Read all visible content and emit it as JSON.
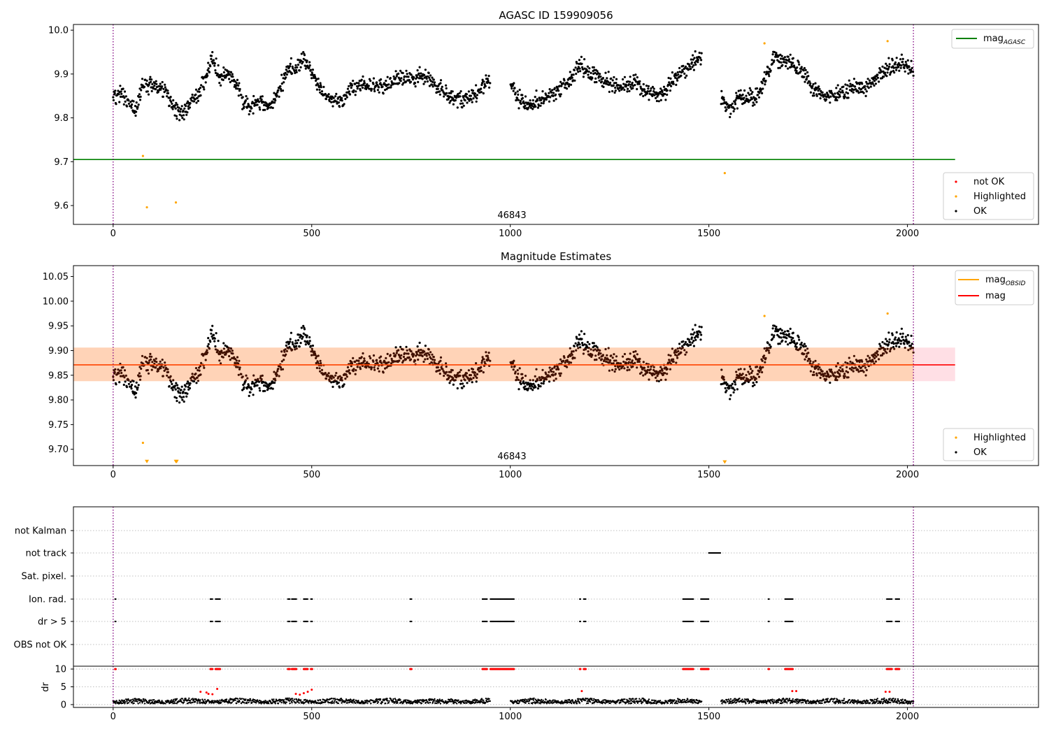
{
  "chart_data": [
    {
      "type": "scatter",
      "title": "AGASC ID 159909056",
      "xlim": [
        -100,
        2330
      ],
      "ylim": [
        9.557,
        10.013
      ],
      "xticks": [
        0,
        500,
        1000,
        1500,
        2000
      ],
      "xtick_labels": [
        "0",
        "500",
        "1000",
        "1500",
        "2000"
      ],
      "yticks": [
        9.6,
        9.7,
        9.8,
        9.9,
        10.0
      ],
      "ytick_labels": [
        "9.6",
        "9.7",
        "9.8",
        "9.9",
        "10.0"
      ],
      "obsid_boundaries": [
        0,
        2015
      ],
      "obsid_label": "46843",
      "obsid_label_x": 1000,
      "reference_lines": [
        {
          "name": "mag_AGASC",
          "value": 9.705,
          "x_range": [
            -100,
            2120
          ],
          "color": "#008000"
        }
      ],
      "legend_lines": {
        "main": "mag",
        "sub": "AGASC",
        "color": "#008000",
        "placement": "top-right"
      },
      "legend_points": {
        "placement": "bottom-right",
        "entries": [
          {
            "label": "not OK",
            "color": "#ff0000"
          },
          {
            "label": "Highlighted",
            "color": "#ffa500"
          },
          {
            "label": "OK",
            "color": "#000000"
          }
        ]
      },
      "series": [
        {
          "name": "OK",
          "color": "#000000",
          "description": "about 1900 samples over frames 0-2015, mag oscillating between 9.79 and 9.96; gaps near 950-1000 and 1480-1530"
        },
        {
          "name": "Highlighted",
          "color": "#ffa500",
          "points": [
            [
              75,
              9.713
            ],
            [
              85,
              9.596
            ],
            [
              158,
              9.607
            ],
            [
              1540,
              9.674
            ],
            [
              1640,
              9.97
            ],
            [
              1950,
              9.975
            ]
          ]
        },
        {
          "name": "not OK",
          "color": "#ff0000",
          "points": []
        }
      ]
    },
    {
      "type": "scatter",
      "title": "Magnitude Estimates",
      "xlim": [
        -100,
        2330
      ],
      "ylim": [
        9.667,
        10.072
      ],
      "xticks": [
        0,
        500,
        1000,
        1500,
        2000
      ],
      "xtick_labels": [
        "0",
        "500",
        "1000",
        "1500",
        "2000"
      ],
      "yticks": [
        9.7,
        9.75,
        9.8,
        9.85,
        9.9,
        9.95,
        10.0,
        10.05
      ],
      "ytick_labels": [
        "9.70",
        "9.75",
        "9.80",
        "9.85",
        "9.90",
        "9.95",
        "10.00",
        "10.05"
      ],
      "obsid_boundaries": [
        0,
        2015
      ],
      "obsid_label": "46843",
      "obsid_label_x": 1000,
      "mag": 9.871,
      "mag_obsid": 9.871,
      "band_outer": [
        9.838,
        9.906
      ],
      "band_inner": [
        9.838,
        9.906
      ],
      "band_x_range": [
        -100,
        2120
      ],
      "legend_lines": {
        "placement": "top-right",
        "entries": [
          {
            "main": "mag",
            "sub": "OBSID",
            "color": "#ffa500"
          },
          {
            "main": "mag",
            "sub": "",
            "color": "#ff0000"
          }
        ]
      },
      "legend_points": {
        "placement": "bottom-right",
        "entries": [
          {
            "label": "Highlighted",
            "color": "#ffa500"
          },
          {
            "label": "OK",
            "color": "#000000"
          }
        ]
      },
      "series": [
        {
          "name": "OK",
          "color": "#000000",
          "description": "same samples as upper panel"
        },
        {
          "name": "Highlighted",
          "color": "#ffa500",
          "points": [
            [
              75,
              9.713
            ],
            [
              1640,
              9.97
            ],
            [
              1950,
              9.975
            ]
          ]
        },
        {
          "name": "Highlighted (below range)",
          "color": "#ffa500",
          "marker": "triangle-down",
          "points": [
            [
              85,
              9.673
            ],
            [
              158,
              9.673
            ],
            [
              160,
              9.673
            ],
            [
              1540,
              9.672
            ]
          ]
        }
      ]
    },
    {
      "type": "scatter",
      "title": "",
      "xlim": [
        -100,
        2330
      ],
      "xticks": [
        0,
        500,
        1000,
        1500,
        2000
      ],
      "xtick_labels": [
        "0",
        "500",
        "1000",
        "1500",
        "2000"
      ],
      "flag_labels": [
        "not Kalman",
        "not track",
        "Sat. pixel.",
        "Ion. rad.",
        "dr > 5",
        "OBS not OK"
      ],
      "flag_segments": {
        "not track": [
          [
            1500,
            1530
          ]
        ],
        "Ion. rad.": [
          [
            5,
            8
          ],
          [
            245,
            250
          ],
          [
            258,
            270
          ],
          [
            440,
            445
          ],
          [
            450,
            462
          ],
          [
            480,
            490
          ],
          [
            498,
            502
          ],
          [
            748,
            752
          ],
          [
            930,
            942
          ],
          [
            950,
            1010
          ],
          [
            1175,
            1178
          ],
          [
            1185,
            1190
          ],
          [
            1435,
            1462
          ],
          [
            1480,
            1500
          ],
          [
            1650,
            1652
          ],
          [
            1692,
            1712
          ],
          [
            1948,
            1962
          ],
          [
            1970,
            1980
          ]
        ],
        "dr > 5": [
          [
            5,
            8
          ],
          [
            245,
            250
          ],
          [
            258,
            270
          ],
          [
            440,
            445
          ],
          [
            450,
            462
          ],
          [
            480,
            490
          ],
          [
            498,
            502
          ],
          [
            748,
            752
          ],
          [
            930,
            942
          ],
          [
            950,
            1010
          ],
          [
            1175,
            1178
          ],
          [
            1185,
            1190
          ],
          [
            1435,
            1462
          ],
          [
            1480,
            1500
          ],
          [
            1650,
            1652
          ],
          [
            1692,
            1712
          ],
          [
            1948,
            1962
          ],
          [
            1970,
            1980
          ]
        ]
      },
      "dr_panel": {
        "ylabel": "dr",
        "yticks": [
          0,
          5,
          10
        ],
        "ytick_labels": [
          "0",
          "5",
          "10"
        ],
        "ylim": [
          -0.8,
          10.8
        ],
        "clipped_value": 10,
        "elevated_points": [
          [
            220,
            3.6
          ],
          [
            235,
            3.4
          ],
          [
            240,
            3.0
          ],
          [
            250,
            2.9
          ],
          [
            262,
            4.4
          ],
          [
            460,
            3.0
          ],
          [
            470,
            2.8
          ],
          [
            480,
            3.2
          ],
          [
            490,
            3.6
          ],
          [
            500,
            4.2
          ],
          [
            1180,
            3.8
          ],
          [
            1710,
            3.8
          ],
          [
            1720,
            3.8
          ],
          [
            1945,
            3.6
          ],
          [
            1955,
            3.6
          ]
        ],
        "baseline_range": [
          0.3,
          1.8
        ]
      }
    }
  ]
}
